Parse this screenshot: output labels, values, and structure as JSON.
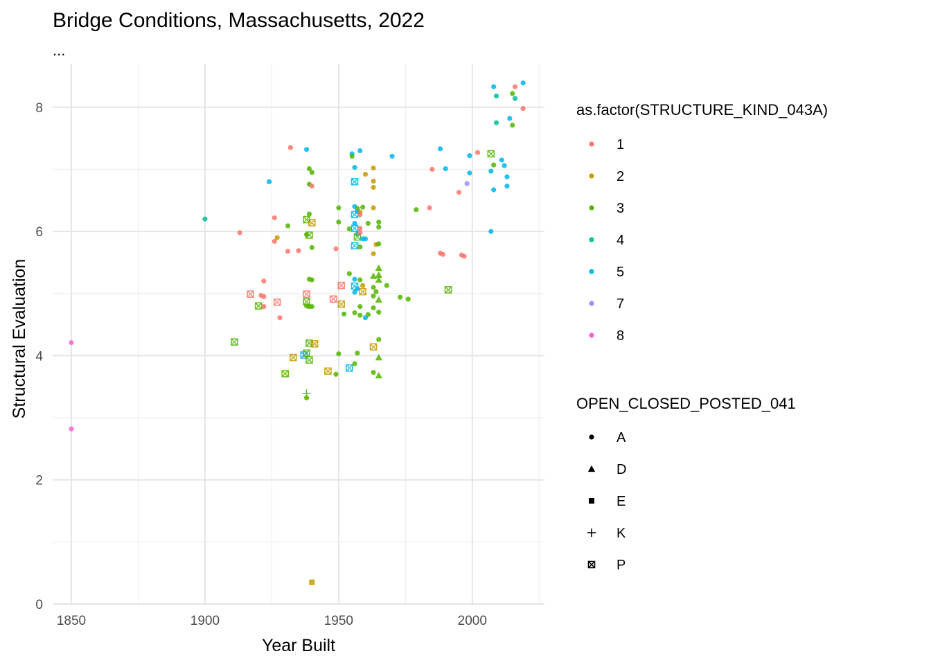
{
  "chart_data": {
    "type": "scatter",
    "title": "Bridge Conditions, Massachusetts, 2022",
    "subtitle": "...",
    "xlabel": "Year Built",
    "ylabel": "Structural Evaluation",
    "xlim": [
      1843,
      2027
    ],
    "ylim": [
      0,
      8.7
    ],
    "x_ticks": [
      1850,
      1900,
      1950,
      2000
    ],
    "y_ticks": [
      0,
      2,
      4,
      6,
      8
    ],
    "x_minor": [
      1875,
      1925,
      1975,
      2025
    ],
    "y_minor": [
      1,
      3,
      5,
      7
    ],
    "grid": true,
    "legend_position": "right",
    "color_legend": {
      "title": "as.factor(STRUCTURE_KIND_043A)",
      "items": [
        {
          "label": "1",
          "color": "#F8766D"
        },
        {
          "label": "2",
          "color": "#C49A00"
        },
        {
          "label": "3",
          "color": "#53B400"
        },
        {
          "label": "4",
          "color": "#00C094"
        },
        {
          "label": "5",
          "color": "#00B6EB"
        },
        {
          "label": "7",
          "color": "#A58AFF"
        },
        {
          "label": "8",
          "color": "#FB61D7"
        }
      ]
    },
    "shape_legend": {
      "title": "OPEN_CLOSED_POSTED_041",
      "items": [
        {
          "label": "A",
          "shape": "circle"
        },
        {
          "label": "D",
          "shape": "triangle"
        },
        {
          "label": "E",
          "shape": "square"
        },
        {
          "label": "K",
          "shape": "plus"
        },
        {
          "label": "P",
          "shape": "boxcross"
        }
      ]
    },
    "points": [
      {
        "x": 1850,
        "y": 4.21,
        "k": "8",
        "s": "A"
      },
      {
        "x": 1850,
        "y": 2.82,
        "k": "8",
        "s": "A"
      },
      {
        "x": 1900,
        "y": 6.2,
        "k": "4",
        "s": "A"
      },
      {
        "x": 1911,
        "y": 4.22,
        "k": "3",
        "s": "P"
      },
      {
        "x": 1913,
        "y": 5.98,
        "k": "1",
        "s": "A"
      },
      {
        "x": 1917,
        "y": 4.99,
        "k": "1",
        "s": "P"
      },
      {
        "x": 1920,
        "y": 4.8,
        "k": "3",
        "s": "P"
      },
      {
        "x": 1921,
        "y": 4.97,
        "k": "1",
        "s": "A"
      },
      {
        "x": 1922,
        "y": 4.95,
        "k": "1",
        "s": "A"
      },
      {
        "x": 1922,
        "y": 5.2,
        "k": "1",
        "s": "A"
      },
      {
        "x": 1922,
        "y": 4.79,
        "k": "1",
        "s": "A"
      },
      {
        "x": 1924,
        "y": 6.8,
        "k": "5",
        "s": "A"
      },
      {
        "x": 1926,
        "y": 6.22,
        "k": "1",
        "s": "A"
      },
      {
        "x": 1926,
        "y": 5.84,
        "k": "1",
        "s": "A"
      },
      {
        "x": 1927,
        "y": 4.86,
        "k": "1",
        "s": "P"
      },
      {
        "x": 1927,
        "y": 5.9,
        "k": "2",
        "s": "A"
      },
      {
        "x": 1928,
        "y": 4.61,
        "k": "1",
        "s": "A"
      },
      {
        "x": 1930,
        "y": 3.71,
        "k": "3",
        "s": "P"
      },
      {
        "x": 1931,
        "y": 5.68,
        "k": "1",
        "s": "A"
      },
      {
        "x": 1931,
        "y": 6.09,
        "k": "3",
        "s": "A"
      },
      {
        "x": 1932,
        "y": 7.35,
        "k": "1",
        "s": "A"
      },
      {
        "x": 1933,
        "y": 3.97,
        "k": "2",
        "s": "P"
      },
      {
        "x": 1935,
        "y": 5.69,
        "k": "1",
        "s": "A"
      },
      {
        "x": 1937,
        "y": 4.01,
        "k": "5",
        "s": "P"
      },
      {
        "x": 1938,
        "y": 7.32,
        "k": "5",
        "s": "A"
      },
      {
        "x": 1938,
        "y": 6.19,
        "k": "3",
        "s": "P"
      },
      {
        "x": 1938,
        "y": 5.95,
        "k": "3",
        "s": "A"
      },
      {
        "x": 1938,
        "y": 4.99,
        "k": "1",
        "s": "P"
      },
      {
        "x": 1938,
        "y": 4.87,
        "k": "3",
        "s": "P"
      },
      {
        "x": 1938,
        "y": 4.8,
        "k": "3",
        "s": "A"
      },
      {
        "x": 1938,
        "y": 4.04,
        "k": "3",
        "s": "P"
      },
      {
        "x": 1938,
        "y": 3.39,
        "k": "3",
        "s": "K"
      },
      {
        "x": 1938,
        "y": 3.32,
        "k": "3",
        "s": "A"
      },
      {
        "x": 1939,
        "y": 7.01,
        "k": "3",
        "s": "A"
      },
      {
        "x": 1939,
        "y": 6.76,
        "k": "3",
        "s": "A"
      },
      {
        "x": 1939,
        "y": 6.28,
        "k": "3",
        "s": "A"
      },
      {
        "x": 1939,
        "y": 5.94,
        "k": "3",
        "s": "P"
      },
      {
        "x": 1939,
        "y": 5.23,
        "k": "3",
        "s": "A"
      },
      {
        "x": 1939,
        "y": 4.2,
        "k": "3",
        "s": "P"
      },
      {
        "x": 1939,
        "y": 4.79,
        "k": "3",
        "s": "A"
      },
      {
        "x": 1939,
        "y": 3.93,
        "k": "3",
        "s": "P"
      },
      {
        "x": 1940,
        "y": 6.95,
        "k": "3",
        "s": "A"
      },
      {
        "x": 1940,
        "y": 6.73,
        "k": "1",
        "s": "A"
      },
      {
        "x": 1940,
        "y": 6.14,
        "k": "2",
        "s": "P"
      },
      {
        "x": 1940,
        "y": 5.74,
        "k": "3",
        "s": "A"
      },
      {
        "x": 1940,
        "y": 5.22,
        "k": "3",
        "s": "A"
      },
      {
        "x": 1940,
        "y": 4.79,
        "k": "3",
        "s": "A"
      },
      {
        "x": 1940,
        "y": 0.35,
        "k": "2",
        "s": "E"
      },
      {
        "x": 1941,
        "y": 4.19,
        "k": "2",
        "s": "P"
      },
      {
        "x": 1946,
        "y": 3.75,
        "k": "2",
        "s": "P"
      },
      {
        "x": 1948,
        "y": 4.91,
        "k": "1",
        "s": "P"
      },
      {
        "x": 1949,
        "y": 5.72,
        "k": "1",
        "s": "A"
      },
      {
        "x": 1949,
        "y": 3.7,
        "k": "3",
        "s": "A"
      },
      {
        "x": 1950,
        "y": 6.38,
        "k": "3",
        "s": "A"
      },
      {
        "x": 1950,
        "y": 6.15,
        "k": "3",
        "s": "A"
      },
      {
        "x": 1950,
        "y": 4.03,
        "k": "3",
        "s": "A"
      },
      {
        "x": 1951,
        "y": 5.13,
        "k": "1",
        "s": "P"
      },
      {
        "x": 1951,
        "y": 4.83,
        "k": "2",
        "s": "P"
      },
      {
        "x": 1952,
        "y": 4.67,
        "k": "3",
        "s": "A"
      },
      {
        "x": 1954,
        "y": 6.04,
        "k": "3",
        "s": "A"
      },
      {
        "x": 1954,
        "y": 5.32,
        "k": "3",
        "s": "A"
      },
      {
        "x": 1954,
        "y": 3.8,
        "k": "5",
        "s": "P"
      },
      {
        "x": 1955,
        "y": 7.25,
        "k": "5",
        "s": "A"
      },
      {
        "x": 1955,
        "y": 7.21,
        "k": "3",
        "s": "A"
      },
      {
        "x": 1956,
        "y": 7.03,
        "k": "5",
        "s": "A"
      },
      {
        "x": 1956,
        "y": 6.8,
        "k": "5",
        "s": "P"
      },
      {
        "x": 1956,
        "y": 6.4,
        "k": "5",
        "s": "A"
      },
      {
        "x": 1956,
        "y": 6.27,
        "k": "5",
        "s": "P"
      },
      {
        "x": 1956,
        "y": 6.13,
        "k": "5",
        "s": "A"
      },
      {
        "x": 1956,
        "y": 6.05,
        "k": "5",
        "s": "P"
      },
      {
        "x": 1956,
        "y": 5.77,
        "k": "5",
        "s": "P"
      },
      {
        "x": 1956,
        "y": 5.23,
        "k": "5",
        "s": "A"
      },
      {
        "x": 1956,
        "y": 5.12,
        "k": "5",
        "s": "P"
      },
      {
        "x": 1956,
        "y": 5.02,
        "k": "5",
        "s": "A"
      },
      {
        "x": 1956,
        "y": 4.69,
        "k": "3",
        "s": "A"
      },
      {
        "x": 1956,
        "y": 3.87,
        "k": "3",
        "s": "A"
      },
      {
        "x": 1957,
        "y": 6.37,
        "k": "3",
        "s": "A"
      },
      {
        "x": 1957,
        "y": 6.32,
        "k": "5",
        "s": "A"
      },
      {
        "x": 1957,
        "y": 5.96,
        "k": "5",
        "s": "A"
      },
      {
        "x": 1957,
        "y": 5.91,
        "k": "3",
        "s": "P"
      },
      {
        "x": 1957,
        "y": 5.08,
        "k": "5",
        "s": "A"
      },
      {
        "x": 1957,
        "y": 4.04,
        "k": "3",
        "s": "A"
      },
      {
        "x": 1958,
        "y": 7.3,
        "k": "5",
        "s": "A"
      },
      {
        "x": 1958,
        "y": 6.31,
        "k": "2",
        "s": "A"
      },
      {
        "x": 1958,
        "y": 6.27,
        "k": "1",
        "s": "A"
      },
      {
        "x": 1958,
        "y": 6.05,
        "k": "1",
        "s": "A"
      },
      {
        "x": 1958,
        "y": 5.98,
        "k": "1",
        "s": "A"
      },
      {
        "x": 1958,
        "y": 5.75,
        "k": "3",
        "s": "A"
      },
      {
        "x": 1958,
        "y": 5.22,
        "k": "3",
        "s": "A"
      },
      {
        "x": 1958,
        "y": 4.79,
        "k": "3",
        "s": "A"
      },
      {
        "x": 1958,
        "y": 4.65,
        "k": "3",
        "s": "A"
      },
      {
        "x": 1959,
        "y": 6.39,
        "k": "3",
        "s": "A"
      },
      {
        "x": 1959,
        "y": 5.88,
        "k": "5",
        "s": "A"
      },
      {
        "x": 1959,
        "y": 5.13,
        "k": "2",
        "s": "A"
      },
      {
        "x": 1959,
        "y": 5.03,
        "k": "2",
        "s": "P"
      },
      {
        "x": 1960,
        "y": 6.92,
        "k": "2",
        "s": "A"
      },
      {
        "x": 1960,
        "y": 5.88,
        "k": "5",
        "s": "A"
      },
      {
        "x": 1960,
        "y": 4.61,
        "k": "5",
        "s": "A"
      },
      {
        "x": 1961,
        "y": 6.13,
        "k": "3",
        "s": "A"
      },
      {
        "x": 1961,
        "y": 4.66,
        "k": "3",
        "s": "A"
      },
      {
        "x": 1963,
        "y": 7.02,
        "k": "2",
        "s": "A"
      },
      {
        "x": 1963,
        "y": 6.81,
        "k": "2",
        "s": "A"
      },
      {
        "x": 1963,
        "y": 6.71,
        "k": "2",
        "s": "A"
      },
      {
        "x": 1963,
        "y": 6.38,
        "k": "2",
        "s": "A"
      },
      {
        "x": 1963,
        "y": 5.64,
        "k": "2",
        "s": "A"
      },
      {
        "x": 1963,
        "y": 5.28,
        "k": "3",
        "s": "D"
      },
      {
        "x": 1963,
        "y": 5.1,
        "k": "3",
        "s": "A"
      },
      {
        "x": 1963,
        "y": 4.96,
        "k": "3",
        "s": "A"
      },
      {
        "x": 1963,
        "y": 4.77,
        "k": "3",
        "s": "A"
      },
      {
        "x": 1963,
        "y": 4.14,
        "k": "2",
        "s": "P"
      },
      {
        "x": 1963,
        "y": 3.73,
        "k": "3",
        "s": "A"
      },
      {
        "x": 1964,
        "y": 5.79,
        "k": "2",
        "s": "A"
      },
      {
        "x": 1964,
        "y": 5.03,
        "k": "3",
        "s": "A"
      },
      {
        "x": 1965,
        "y": 6.15,
        "k": "3",
        "s": "A"
      },
      {
        "x": 1965,
        "y": 6.07,
        "k": "3",
        "s": "A"
      },
      {
        "x": 1965,
        "y": 5.8,
        "k": "3",
        "s": "A"
      },
      {
        "x": 1965,
        "y": 5.41,
        "k": "3",
        "s": "D"
      },
      {
        "x": 1965,
        "y": 5.3,
        "k": "3",
        "s": "D"
      },
      {
        "x": 1965,
        "y": 5.22,
        "k": "3",
        "s": "D"
      },
      {
        "x": 1965,
        "y": 4.9,
        "k": "3",
        "s": "D"
      },
      {
        "x": 1965,
        "y": 4.7,
        "k": "3",
        "s": "A"
      },
      {
        "x": 1965,
        "y": 4.26,
        "k": "3",
        "s": "A"
      },
      {
        "x": 1965,
        "y": 3.97,
        "k": "3",
        "s": "D"
      },
      {
        "x": 1965,
        "y": 3.68,
        "k": "3",
        "s": "D"
      },
      {
        "x": 1968,
        "y": 5.13,
        "k": "3",
        "s": "A"
      },
      {
        "x": 1970,
        "y": 7.21,
        "k": "5",
        "s": "A"
      },
      {
        "x": 1973,
        "y": 4.94,
        "k": "3",
        "s": "A"
      },
      {
        "x": 1976,
        "y": 4.91,
        "k": "3",
        "s": "A"
      },
      {
        "x": 1979,
        "y": 6.35,
        "k": "3",
        "s": "A"
      },
      {
        "x": 1984,
        "y": 6.38,
        "k": "1",
        "s": "A"
      },
      {
        "x": 1985,
        "y": 7.0,
        "k": "1",
        "s": "A"
      },
      {
        "x": 1988,
        "y": 5.65,
        "k": "1",
        "s": "A"
      },
      {
        "x": 1988,
        "y": 7.33,
        "k": "5",
        "s": "A"
      },
      {
        "x": 1989,
        "y": 5.63,
        "k": "1",
        "s": "A"
      },
      {
        "x": 1990,
        "y": 7.01,
        "k": "5",
        "s": "A"
      },
      {
        "x": 1991,
        "y": 5.06,
        "k": "3",
        "s": "P"
      },
      {
        "x": 1995,
        "y": 6.63,
        "k": "1",
        "s": "A"
      },
      {
        "x": 1996,
        "y": 5.62,
        "k": "1",
        "s": "A"
      },
      {
        "x": 1997,
        "y": 5.6,
        "k": "1",
        "s": "A"
      },
      {
        "x": 1998,
        "y": 6.77,
        "k": "7",
        "s": "A"
      },
      {
        "x": 1999,
        "y": 6.94,
        "k": "5",
        "s": "A"
      },
      {
        "x": 1999,
        "y": 7.22,
        "k": "5",
        "s": "A"
      },
      {
        "x": 2002,
        "y": 7.27,
        "k": "1",
        "s": "A"
      },
      {
        "x": 2007,
        "y": 7.25,
        "k": "3",
        "s": "P"
      },
      {
        "x": 2007,
        "y": 6.97,
        "k": "5",
        "s": "A"
      },
      {
        "x": 2007,
        "y": 6.0,
        "k": "5",
        "s": "A"
      },
      {
        "x": 2008,
        "y": 8.33,
        "k": "5",
        "s": "A"
      },
      {
        "x": 2008,
        "y": 7.07,
        "k": "3",
        "s": "A"
      },
      {
        "x": 2008,
        "y": 6.67,
        "k": "5",
        "s": "A"
      },
      {
        "x": 2009,
        "y": 8.18,
        "k": "4",
        "s": "A"
      },
      {
        "x": 2009,
        "y": 7.75,
        "k": "4",
        "s": "A"
      },
      {
        "x": 2011,
        "y": 7.15,
        "k": "5",
        "s": "A"
      },
      {
        "x": 2012,
        "y": 7.06,
        "k": "5",
        "s": "A"
      },
      {
        "x": 2013,
        "y": 6.88,
        "k": "5",
        "s": "A"
      },
      {
        "x": 2013,
        "y": 6.73,
        "k": "5",
        "s": "A"
      },
      {
        "x": 2014,
        "y": 7.82,
        "k": "5",
        "s": "A"
      },
      {
        "x": 2015,
        "y": 8.22,
        "k": "3",
        "s": "A"
      },
      {
        "x": 2015,
        "y": 7.71,
        "k": "3",
        "s": "A"
      },
      {
        "x": 2016,
        "y": 8.33,
        "k": "1",
        "s": "A"
      },
      {
        "x": 2016,
        "y": 8.14,
        "k": "4",
        "s": "A"
      },
      {
        "x": 2019,
        "y": 8.39,
        "k": "5",
        "s": "A"
      },
      {
        "x": 2019,
        "y": 7.98,
        "k": "1",
        "s": "A"
      }
    ]
  }
}
